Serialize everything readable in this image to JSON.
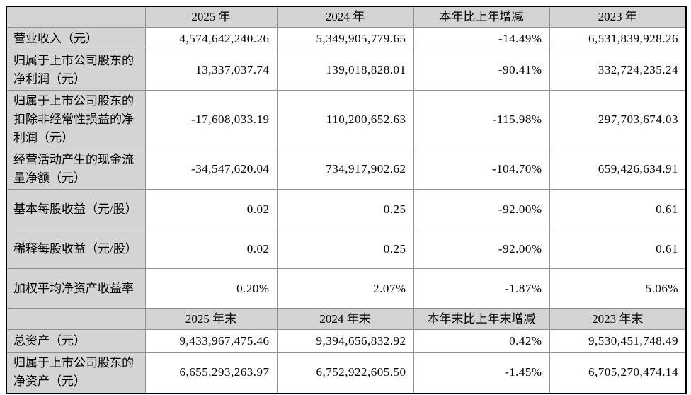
{
  "table": {
    "colors": {
      "band_bg": "#d4d4d4",
      "grid": "#909090",
      "outer_border": "#000000",
      "cell_bg": "#ffffff",
      "text": "#000000"
    },
    "sections": [
      {
        "header": [
          "",
          "2025 年",
          "2024 年",
          "本年比上年增减",
          "2023 年"
        ],
        "rows": [
          {
            "label": "营业收入（元）",
            "values": [
              "4,574,642,240.26",
              "5,349,905,779.65",
              "-14.49%",
              "6,531,839,928.26"
            ]
          },
          {
            "label": "归属于上市公司股东的净利润（元）",
            "values": [
              "13,337,037.74",
              "139,018,828.01",
              "-90.41%",
              "332,724,235.24"
            ]
          },
          {
            "label": "归属于上市公司股东的扣除非经常性损益的净利润（元）",
            "values": [
              "-17,608,033.19",
              "110,200,652.63",
              "-115.98%",
              "297,703,674.03"
            ]
          },
          {
            "label": "经营活动产生的现金流量净额（元）",
            "values": [
              "-34,547,620.04",
              "734,917,902.62",
              "-104.70%",
              "659,426,634.91"
            ]
          },
          {
            "label": "基本每股收益（元/股）",
            "values": [
              "0.02",
              "0.25",
              "-92.00%",
              "0.61"
            ]
          },
          {
            "label": "稀释每股收益（元/股）",
            "values": [
              "0.02",
              "0.25",
              "-92.00%",
              "0.61"
            ]
          },
          {
            "label": "加权平均净资产收益率",
            "values": [
              "0.20%",
              "2.07%",
              "-1.87%",
              "5.06%"
            ]
          }
        ]
      },
      {
        "header": [
          "",
          "2025 年末",
          "2024 年末",
          "本年末比上年末增减",
          "2023 年末"
        ],
        "rows": [
          {
            "label": "总资产（元）",
            "values": [
              "9,433,967,475.46",
              "9,394,656,832.92",
              "0.42%",
              "9,530,451,748.49"
            ]
          },
          {
            "label": "归属于上市公司股东的净资产（元）",
            "values": [
              "6,655,293,263.97",
              "6,752,922,605.50",
              "-1.45%",
              "6,705,270,474.14"
            ]
          }
        ]
      }
    ]
  }
}
